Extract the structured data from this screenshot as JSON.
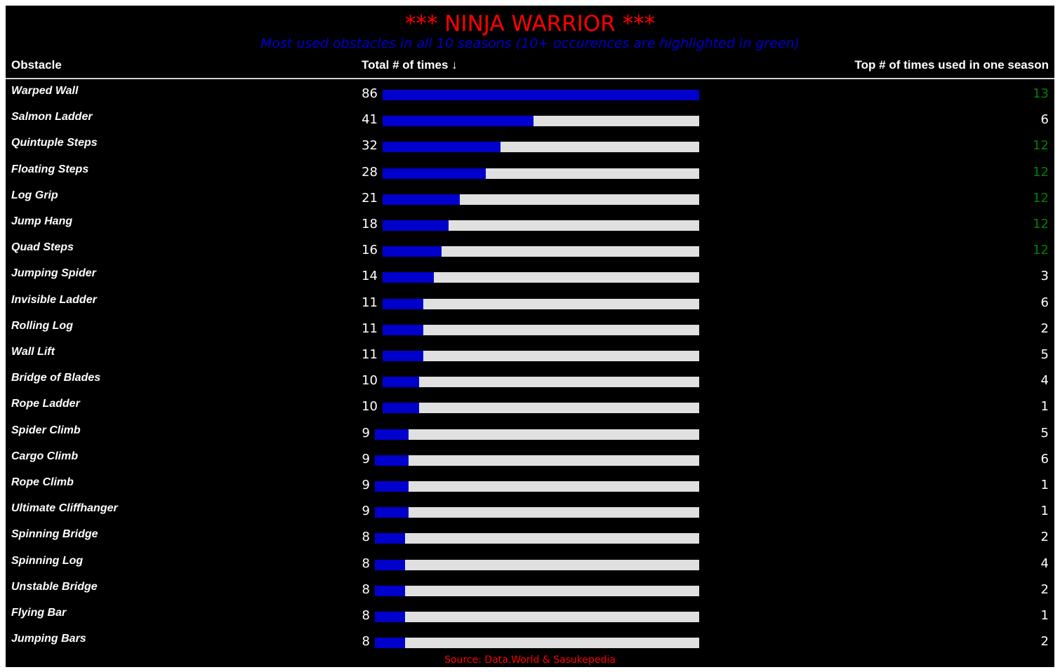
{
  "title": "*** NINJA WARRIOR ***",
  "subtitle": "Most used obstacles in all 10 seasons (10+ occurences are highlighted in green)",
  "columns": {
    "obstacle": "Obstacle",
    "total": "Total # of times ↓",
    "top": "Top # of times used in one season"
  },
  "source": "Source: Data.World & Sasukepedia",
  "colors": {
    "background": "#000000",
    "title": "#ff0000",
    "subtitle": "#0000cc",
    "bar_fill": "#0000cc",
    "bar_track": "#e0e0e0",
    "text": "#ffffff",
    "highlight": "#008000",
    "source": "#ff0000"
  },
  "chart_data": {
    "type": "bar",
    "orientation": "horizontal",
    "xlim": [
      0,
      86
    ],
    "highlight_threshold": 10,
    "rows": [
      {
        "obstacle": "Warped Wall",
        "total": 86,
        "top": 13
      },
      {
        "obstacle": "Salmon Ladder",
        "total": 41,
        "top": 6
      },
      {
        "obstacle": "Quintuple Steps",
        "total": 32,
        "top": 12
      },
      {
        "obstacle": "Floating Steps",
        "total": 28,
        "top": 12
      },
      {
        "obstacle": "Log Grip",
        "total": 21,
        "top": 12
      },
      {
        "obstacle": "Jump Hang",
        "total": 18,
        "top": 12
      },
      {
        "obstacle": "Quad Steps",
        "total": 16,
        "top": 12
      },
      {
        "obstacle": "Jumping Spider",
        "total": 14,
        "top": 3
      },
      {
        "obstacle": "Invisible Ladder",
        "total": 11,
        "top": 6
      },
      {
        "obstacle": "Rolling Log",
        "total": 11,
        "top": 2
      },
      {
        "obstacle": "Wall Lift",
        "total": 11,
        "top": 5
      },
      {
        "obstacle": "Bridge of Blades",
        "total": 10,
        "top": 4
      },
      {
        "obstacle": "Rope Ladder",
        "total": 10,
        "top": 1
      },
      {
        "obstacle": "Spider Climb",
        "total": 9,
        "top": 5
      },
      {
        "obstacle": "Cargo Climb",
        "total": 9,
        "top": 6
      },
      {
        "obstacle": "Rope Climb",
        "total": 9,
        "top": 1
      },
      {
        "obstacle": "Ultimate Cliffhanger",
        "total": 9,
        "top": 1
      },
      {
        "obstacle": "Spinning Bridge",
        "total": 8,
        "top": 2
      },
      {
        "obstacle": "Spinning Log",
        "total": 8,
        "top": 4
      },
      {
        "obstacle": "Unstable Bridge",
        "total": 8,
        "top": 2
      },
      {
        "obstacle": "Flying Bar",
        "total": 8,
        "top": 1
      },
      {
        "obstacle": "Jumping Bars",
        "total": 8,
        "top": 2
      }
    ]
  }
}
